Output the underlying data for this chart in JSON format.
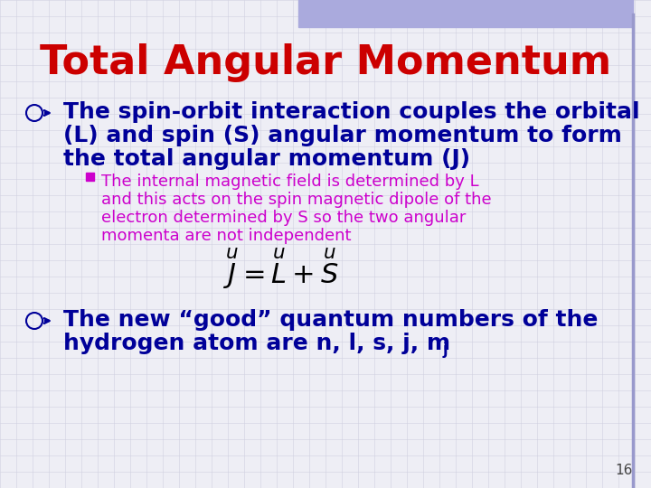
{
  "title": "Total Angular Momentum",
  "title_color": "#CC0000",
  "title_fontsize": 32,
  "bg_color": "#eeeef5",
  "grid_color": "#d0d0e0",
  "bullet1_lines": [
    "The spin-orbit interaction couples the orbital",
    "(L) and spin (S) angular momentum to form",
    "the total angular momentum (J)"
  ],
  "bullet1_color": "#000099",
  "bullet1_fontsize": 18,
  "subbullet_lines": [
    "The internal magnetic field is determined by L",
    "and this acts on the spin magnetic dipole of the",
    "electron determined by S so the two angular",
    "momenta are not independent"
  ],
  "subbullet_color": "#CC00CC",
  "subbullet_fontsize": 13,
  "bullet2_line1": "The new “good” quantum numbers of the",
  "bullet2_line2": "hydrogen atom are n, l, s, j, m",
  "bullet2_color": "#000099",
  "bullet2_fontsize": 18,
  "page_number": "16",
  "marker_color": "#000099",
  "sq_color": "#CC00CC",
  "accent_color": "#9999cc",
  "top_accent_color": "#aaaadd"
}
